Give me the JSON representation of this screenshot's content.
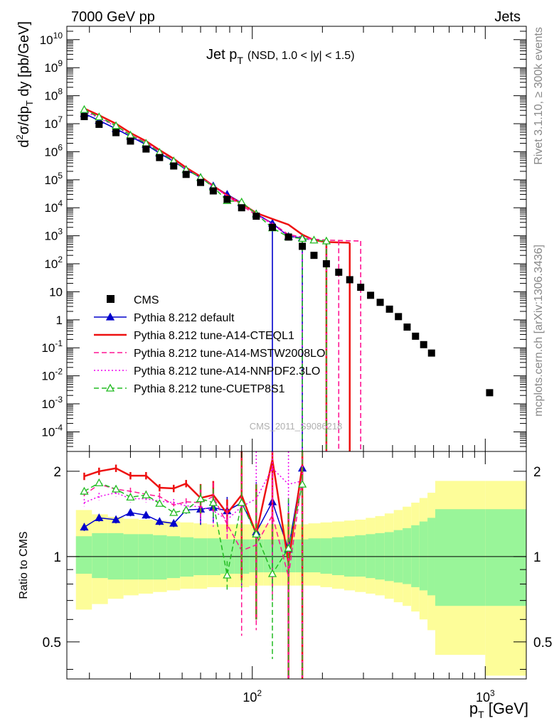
{
  "header": {
    "left": "7000 GeV pp",
    "right": "Jets",
    "plot_title_main": "Jet p",
    "plot_title_sub": "T",
    "plot_title_extra": "(NSD, 1.0 < |y| < 1.5)",
    "side_top": "Rivet 3.1.10, ≥ 300k events",
    "side_bottom": "mcplots.cern.ch [arXiv:1306.3436]",
    "watermark": "CMS_2011_S9086218"
  },
  "axes": {
    "ylabel_main": "d²σ/dp_T dy [pb/GeV]",
    "ylabel_ratio": "Ratio to CMS",
    "xlabel": "p_T [GeV]"
  },
  "colors": {
    "cms": "#000000",
    "default": "#0000cc",
    "cteql1": "#ee1111",
    "mstw": "#ff1493",
    "nnpdf": "#ee00ee",
    "cuetp8s1": "#22bb22",
    "band_inner": "#99f599",
    "band_outer": "#fdfd99"
  },
  "chart_data": [
    {
      "type": "scatter",
      "title": "Jet p_T (NSD, 1.0 < |y| < 1.5)",
      "xlabel": "p_T [GeV]",
      "ylabel": "d²σ/dp_T dy [pb/GeV]",
      "xscale": "log",
      "yscale": "log",
      "xlim": [
        16,
        1500
      ],
      "ylim": [
        2e-05,
        30000000000.0
      ],
      "legend_placement": "bottom-left",
      "series": [
        {
          "name": "CMS",
          "style": "square-marker",
          "x": [
            19,
            22,
            26,
            30,
            35,
            40,
            46,
            52,
            60,
            68,
            78,
            90,
            104,
            122,
            143,
            164,
            184,
            208,
            235,
            262,
            292,
            322,
            354,
            388,
            424,
            462,
            502,
            544,
            588,
            1044
          ],
          "y": [
            18000000.0,
            9500000.0,
            4800000.0,
            2400000.0,
            1250000.0,
            620000.0,
            310000.0,
            155000.0,
            80000.0,
            40000.0,
            20000.0,
            10000.0,
            5000.0,
            2000.0,
            900,
            420,
            200,
            100,
            50,
            27,
            14.5,
            7.5,
            4.2,
            2.4,
            1.3,
            0.55,
            0.26,
            0.13,
            0.065,
            0.0025
          ]
        },
        {
          "name": "Pythia 8.212 default",
          "style": "solid-line filled-triangle",
          "x": [
            19,
            22,
            26,
            30,
            35,
            40,
            46,
            52,
            60,
            68,
            78,
            90,
            104,
            122,
            143,
            164
          ],
          "y": [
            23000000.0,
            13000000.0,
            6600000.0,
            3500000.0,
            1800000.0,
            880000.0,
            450000.0,
            230000.0,
            120000.0,
            60000.0,
            30000.0,
            15000.0,
            6000.0,
            2800.0,
            950,
            850
          ]
        },
        {
          "name": "Pythia 8.212 tune-A14-CTEQL1",
          "style": "solid-line",
          "x": [
            19,
            22,
            26,
            30,
            35,
            40,
            46,
            52,
            60,
            68,
            78,
            90,
            104,
            122,
            143,
            164,
            184,
            208,
            235,
            262
          ],
          "y": [
            35000000.0,
            20000000.0,
            10000000.0,
            4700000.0,
            2400000.0,
            1150000.0,
            560000.0,
            270000.0,
            130000.0,
            60000.0,
            28000.0,
            14000.0,
            6500.0,
            4000.0,
            2500.0,
            1100.0,
            700,
            600,
            580,
            560
          ]
        },
        {
          "name": "Pythia 8.212 tune-A14-MSTW2008LO",
          "style": "dashed-line",
          "x": [
            19,
            22,
            26,
            30,
            35,
            40,
            46,
            52,
            60,
            68,
            78,
            90,
            104,
            122,
            143,
            164,
            184,
            208,
            235,
            262,
            292
          ],
          "y": [
            30000000.0,
            17000000.0,
            8400000.0,
            4000000.0,
            2100000.0,
            1000000.0,
            490000.0,
            240000.0,
            120000.0,
            60000.0,
            26000.0,
            12000.0,
            5500.0,
            2800.0,
            1100.0,
            900,
            750,
            700,
            680,
            660,
            650
          ]
        },
        {
          "name": "Pythia 8.212 tune-A14-NNPDF2.3LO",
          "style": "dotted-line",
          "x": [
            19,
            22,
            26,
            30,
            35,
            40,
            46,
            52,
            60,
            68,
            78,
            90,
            104,
            122,
            143,
            164,
            184,
            208
          ],
          "y": [
            28000000.0,
            16000000.0,
            8000000.0,
            3800000.0,
            2000000.0,
            980000.0,
            480000.0,
            240000.0,
            120000.0,
            58000.0,
            27000.0,
            15000.0,
            6000.0,
            2500.0,
            1000.0,
            800,
            700,
            650
          ]
        },
        {
          "name": "Pythia 8.212 tune-CUETP8S1",
          "style": "dashed-line open-triangle",
          "x": [
            19,
            22,
            26,
            30,
            35,
            40,
            46,
            52,
            60,
            68,
            78,
            90,
            104,
            122,
            143,
            164,
            184,
            208
          ],
          "y": [
            32000000.0,
            17500000.0,
            8500000.0,
            3900000.0,
            2000000.0,
            950000.0,
            470000.0,
            230000.0,
            120000.0,
            55000.0,
            18000.0,
            16000.0,
            6000.0,
            1900.0,
            900,
            800,
            700,
            650
          ]
        }
      ]
    },
    {
      "type": "line",
      "title": "",
      "xlabel": "p_T [GeV]",
      "ylabel": "Ratio to CMS",
      "xscale": "log",
      "yscale": "log",
      "xlim": [
        16,
        1500
      ],
      "ylim": [
        0.37,
        2.35
      ],
      "reference_line": 1,
      "bands": {
        "x_edges": [
          17.5,
          20.5,
          24,
          28,
          32.5,
          37.5,
          43,
          49,
          56,
          64,
          73,
          84,
          97,
          112,
          133,
          153,
          174,
          196,
          220,
          248,
          276,
          307,
          337,
          370,
          405,
          442,
          481,
          522,
          565,
          610,
          1000,
          1500
        ],
        "inner_lo": [
          0.87,
          0.84,
          0.83,
          0.83,
          0.83,
          0.83,
          0.84,
          0.85,
          0.86,
          0.86,
          0.87,
          0.87,
          0.88,
          0.88,
          0.88,
          0.88,
          0.88,
          0.87,
          0.86,
          0.85,
          0.85,
          0.84,
          0.83,
          0.82,
          0.81,
          0.8,
          0.78,
          0.76,
          0.73,
          0.67,
          0.67
        ],
        "inner_hi": [
          1.18,
          1.21,
          1.21,
          1.2,
          1.2,
          1.19,
          1.18,
          1.17,
          1.16,
          1.16,
          1.15,
          1.15,
          1.15,
          1.15,
          1.15,
          1.15,
          1.16,
          1.16,
          1.17,
          1.18,
          1.19,
          1.2,
          1.21,
          1.22,
          1.24,
          1.26,
          1.29,
          1.33,
          1.37,
          1.47,
          1.47
        ],
        "outer_lo": [
          0.65,
          0.68,
          0.71,
          0.73,
          0.74,
          0.75,
          0.76,
          0.77,
          0.77,
          0.78,
          0.78,
          0.78,
          0.79,
          0.79,
          0.79,
          0.79,
          0.79,
          0.78,
          0.77,
          0.76,
          0.75,
          0.74,
          0.73,
          0.71,
          0.69,
          0.67,
          0.64,
          0.6,
          0.55,
          0.45,
          0.38
        ],
        "outer_hi": [
          1.46,
          1.41,
          1.38,
          1.36,
          1.35,
          1.34,
          1.33,
          1.32,
          1.31,
          1.3,
          1.3,
          1.3,
          1.3,
          1.3,
          1.3,
          1.3,
          1.31,
          1.32,
          1.33,
          1.34,
          1.35,
          1.37,
          1.39,
          1.42,
          1.46,
          1.5,
          1.55,
          1.61,
          1.68,
          1.85,
          1.85
        ]
      },
      "series": [
        {
          "name": "Pythia 8.212 default",
          "x": [
            19,
            22,
            26,
            30,
            35,
            40,
            46,
            52,
            60,
            68,
            78,
            90,
            104,
            122,
            143,
            164
          ],
          "y": [
            1.27,
            1.37,
            1.35,
            1.43,
            1.4,
            1.33,
            1.31,
            1.46,
            1.47,
            1.49,
            1.45,
            1.55,
            1.22,
            1.56,
            1.06,
            2.05
          ]
        },
        {
          "name": "Pythia 8.212 tune-A14-CTEQL1",
          "x": [
            19,
            22,
            26,
            30,
            35,
            40,
            46,
            52,
            60,
            68,
            78,
            90,
            104,
            122,
            143,
            164
          ],
          "y": [
            1.92,
            2.0,
            2.05,
            1.93,
            1.93,
            1.75,
            1.74,
            1.81,
            1.61,
            1.65,
            1.42,
            1.65,
            1.2,
            2.2,
            0.95,
            2.1
          ]
        },
        {
          "name": "Pythia 8.212 tune-A14-MSTW2008LO",
          "x": [
            19,
            22,
            26,
            30,
            35,
            40,
            46,
            52,
            60,
            68,
            78,
            90,
            104,
            122,
            143,
            164
          ],
          "y": [
            1.65,
            1.8,
            1.73,
            1.7,
            1.66,
            1.63,
            1.52,
            1.56,
            1.55,
            1.63,
            1.3,
            1.05,
            1.1,
            1.4,
            0.85,
            1.9
          ]
        },
        {
          "name": "Pythia 8.212 tune-A14-NNPDF2.3LO",
          "x": [
            19,
            22,
            26,
            30,
            35,
            40,
            46,
            52,
            60,
            68,
            78,
            90,
            104,
            122,
            143,
            164
          ],
          "y": [
            1.55,
            1.63,
            1.68,
            1.6,
            1.6,
            1.57,
            1.55,
            1.51,
            1.5,
            1.45,
            1.35,
            1.5,
            1.6,
            2.05,
            1.8,
            1.85
          ]
        },
        {
          "name": "Pythia 8.212 tune-CUETP8S1",
          "x": [
            19,
            22,
            26,
            30,
            35,
            40,
            46,
            52,
            60,
            68,
            78,
            90,
            104,
            122,
            143,
            164
          ],
          "y": [
            1.7,
            1.82,
            1.73,
            1.62,
            1.65,
            1.54,
            1.43,
            1.46,
            1.6,
            1.55,
            0.86,
            1.55,
            1.2,
            0.87,
            1.07,
            1.8
          ]
        }
      ]
    }
  ]
}
